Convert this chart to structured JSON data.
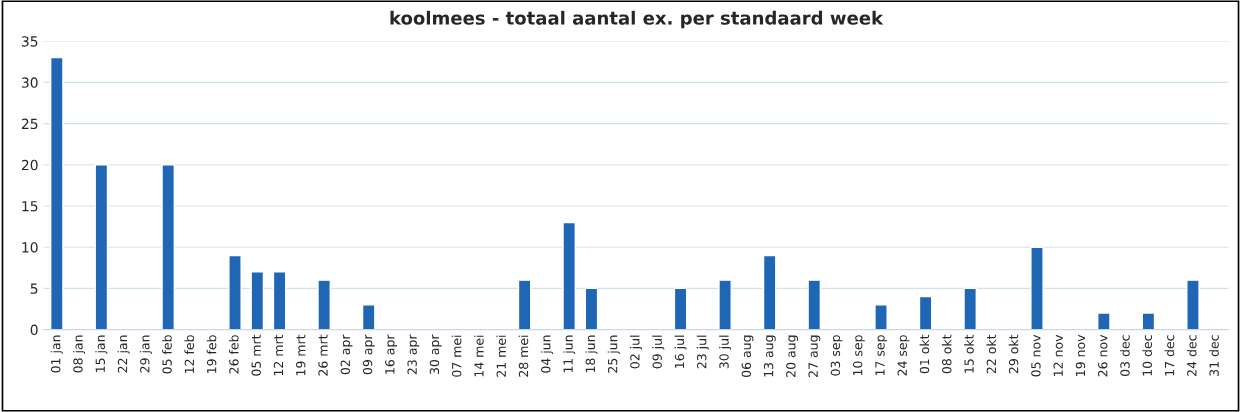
{
  "chart_data": {
    "type": "bar",
    "title": "koolmees - totaal aantal ex. per standaard week",
    "categories": [
      "01 jan",
      "08 jan",
      "15 jan",
      "22 jan",
      "29 jan",
      "05 feb",
      "12 feb",
      "19 feb",
      "26 feb",
      "05 mrt",
      "12 mrt",
      "19 mrt",
      "26 mrt",
      "02 apr",
      "09 apr",
      "16 apr",
      "23 apr",
      "30 apr",
      "07 mei",
      "14 mei",
      "21 mei",
      "28 mei",
      "04 jun",
      "11 jun",
      "18 jun",
      "25 jun",
      "02 jul",
      "09 jul",
      "16 jul",
      "23 jul",
      "30 jul",
      "06 aug",
      "13 aug",
      "20 aug",
      "27 aug",
      "03 sep",
      "10 sep",
      "17 sep",
      "24 sep",
      "01 okt",
      "08 okt",
      "15 okt",
      "22 okt",
      "29 okt",
      "05 nov",
      "12 nov",
      "19 nov",
      "26 nov",
      "03 dec",
      "10 dec",
      "17 dec",
      "24 dec",
      "31 dec"
    ],
    "values": [
      33,
      null,
      20,
      null,
      null,
      20,
      null,
      null,
      9,
      7,
      7,
      null,
      6,
      null,
      3,
      null,
      null,
      null,
      null,
      null,
      null,
      6,
      null,
      13,
      5,
      null,
      null,
      null,
      5,
      null,
      6,
      null,
      9,
      null,
      6,
      null,
      null,
      3,
      null,
      4,
      null,
      5,
      null,
      null,
      10,
      null,
      null,
      2,
      null,
      2,
      null,
      6,
      null
    ],
    "color": "#1f67b5",
    "ylim": [
      0,
      35
    ],
    "yticks": [
      0,
      5,
      10,
      15,
      20,
      25,
      30,
      35
    ],
    "grid": "y"
  }
}
